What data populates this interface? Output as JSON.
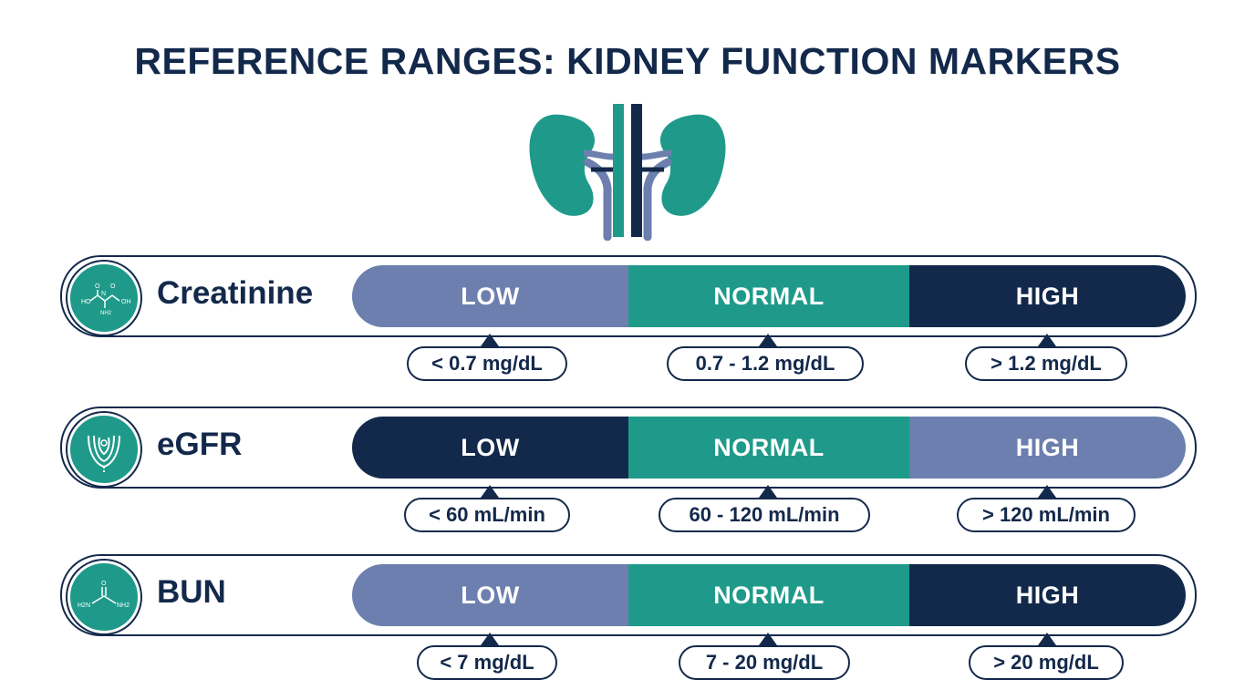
{
  "title": "REFERENCE RANGES: KIDNEY FUNCTION MARKERS",
  "colors": {
    "navy": "#13294b",
    "teal": "#1f9a8a",
    "periwinkle": "#6c7fae",
    "white": "#ffffff"
  },
  "header_icon": "kidneys-icon",
  "rows": [
    {
      "name": "Creatinine",
      "icon": "creatinine-molecule-icon",
      "icon_labels": [
        "HO",
        "N",
        "OH",
        "O",
        "NH2",
        "O"
      ],
      "segments": [
        {
          "label": "LOW",
          "color": "#6c7fae"
        },
        {
          "label": "NORMAL",
          "color": "#1f9a8a"
        },
        {
          "label": "HIGH",
          "color": "#13294b"
        }
      ],
      "ranges": [
        "< 0.7 mg/dL",
        "0.7 - 1.2 mg/dL",
        "> 1.2 mg/dL"
      ]
    },
    {
      "name": "eGFR",
      "icon": "nephron-filter-icon",
      "segments": [
        {
          "label": "LOW",
          "color": "#13294b"
        },
        {
          "label": "NORMAL",
          "color": "#1f9a8a"
        },
        {
          "label": "HIGH",
          "color": "#6c7fae"
        }
      ],
      "ranges": [
        "< 60 mL/min",
        "60 - 120 mL/min",
        "> 120 mL/min"
      ]
    },
    {
      "name": "BUN",
      "icon": "urea-molecule-icon",
      "icon_labels": [
        "O",
        "H2N",
        "NH2"
      ],
      "segments": [
        {
          "label": "LOW",
          "color": "#6c7fae"
        },
        {
          "label": "NORMAL",
          "color": "#1f9a8a"
        },
        {
          "label": "HIGH",
          "color": "#13294b"
        }
      ],
      "ranges": [
        "< 7 mg/dL",
        "7 - 20 mg/dL",
        "> 20 mg/dL"
      ]
    }
  ]
}
